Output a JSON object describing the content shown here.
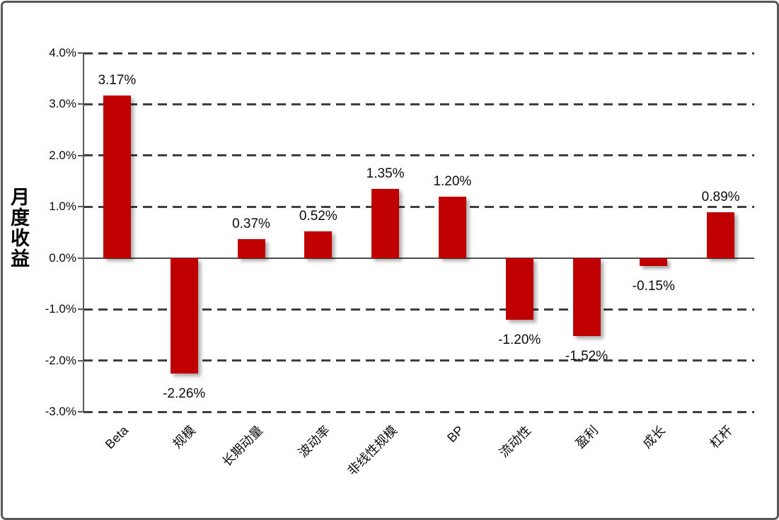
{
  "frame": {
    "background": "#FFFFFF",
    "border_color": "#595959"
  },
  "chart_data": {
    "type": "bar",
    "title": "",
    "xlabel": "",
    "ylabel": "月度收益",
    "categories": [
      "Beta",
      "规模",
      "长期动量",
      "波动率",
      "非线性规模",
      "BP",
      "流动性",
      "盈利",
      "成长",
      "杠杆"
    ],
    "values": [
      3.17,
      -2.26,
      0.37,
      0.52,
      1.35,
      1.2,
      -1.2,
      -1.52,
      -0.15,
      0.89
    ],
    "value_labels": [
      "3.17%",
      "-2.26%",
      "0.37%",
      "0.52%",
      "1.35%",
      "1.20%",
      "-1.20%",
      "-1.52%",
      "-0.15%",
      "0.89%"
    ],
    "ylim": [
      -3,
      4
    ],
    "ytick_interval": 1,
    "ytick_labels": [
      "4.0%",
      "3.0%",
      "2.0%",
      "1.0%",
      "0.0%",
      "-1.0%",
      "-2.0%",
      "-3.0%"
    ],
    "grid": {
      "horizontal": true,
      "style": "dashed",
      "color": "#3F3F3F"
    },
    "legend": {
      "visible": false
    },
    "bar_color": "#C00000",
    "axis_color": "#595959",
    "zero_line_color": "#4D4D4D",
    "x_label_rotation_deg": 45
  }
}
